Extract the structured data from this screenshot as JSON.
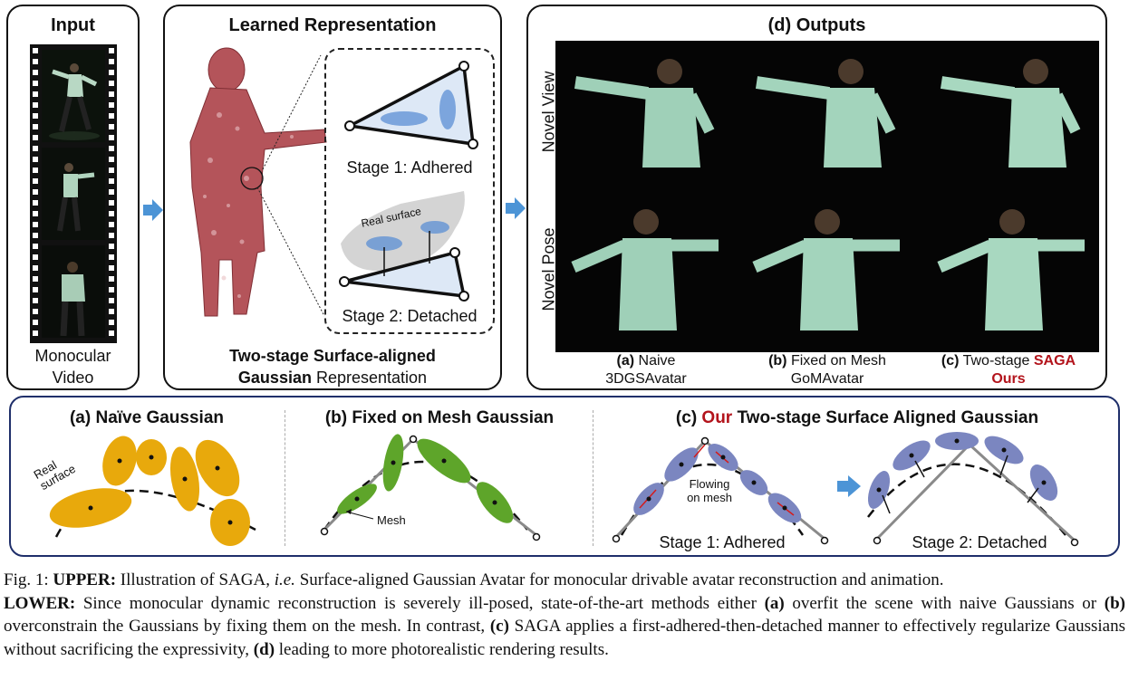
{
  "input_panel": {
    "title": "Input",
    "caption_line1": "Monocular",
    "caption_line2": "Video"
  },
  "learned_panel": {
    "title": "Learned Representation",
    "stage1_label": "Stage 1: Adhered",
    "stage2_label": "Stage 2: Detached",
    "real_surface_label": "Real surface",
    "caption_line1": "Two-stage Surface-aligned",
    "caption_bold": "Gaussian",
    "caption_rest": " Representation"
  },
  "outputs_panel": {
    "title": "(d) Outputs",
    "row_labels": [
      "Novel View",
      "Novel Pose"
    ],
    "columns": [
      {
        "tag": "(a)",
        "name": " Naive",
        "line2": "3DGSAvatar",
        "highlight": ""
      },
      {
        "tag": "(b)",
        "name": " Fixed on Mesh",
        "line2": "GoMAvatar",
        "highlight": ""
      },
      {
        "tag": "(c)",
        "name": " Two-stage ",
        "line2": "Ours",
        "highlight": "SAGA"
      }
    ]
  },
  "lower_panel": {
    "a_title": "(a) Naïve Gaussian",
    "a_real_surface": "Real surface",
    "b_title": "(b) Fixed on Mesh Gaussian",
    "b_mesh": "Mesh",
    "c_title_tag": "(c) ",
    "c_title_ours": "Our",
    "c_title_rest": " Two-stage Surface Aligned Gaussian",
    "c_flowing": "Flowing on mesh",
    "c_stage1": "Stage 1:  Adhered",
    "c_stage2": "Stage 2: Detached"
  },
  "caption": {
    "fig": "Fig. 1: ",
    "upper_tag": "UPPER:",
    "upper_text": " Illustration of SAGA, ",
    "ie": "i.e.",
    "upper_text2": " Surface-aligned Gaussian Avatar for monocular drivable avatar reconstruction and animation.",
    "lower_tag": "LOWER:",
    "lower_text1": " Since monocular dynamic reconstruction is severely ill-posed, state-of-the-art methods either ",
    "a": "(a)",
    "lower_text2": " overfit the scene with naive Gaussians or ",
    "b": "(b)",
    "lower_text3": " overconstrain the Gaussians by fixing them on the mesh. In contrast, ",
    "c": "(c)",
    "lower_text4": " SAGA applies a first-adhered-then-detached manner to effectively regularize Gaussians without sacrificing the expressivity, ",
    "d": "(d)",
    "lower_text5": " leading to more photorealistic rendering results."
  },
  "colors": {
    "gaussian_gold": "#e8a90c",
    "gaussian_green": "#5ea52a",
    "gaussian_blue": "#7b86c0",
    "arrow_blue": "#4c94d6",
    "mesh_red": "#b4545a",
    "accent_red": "#b3141c"
  }
}
